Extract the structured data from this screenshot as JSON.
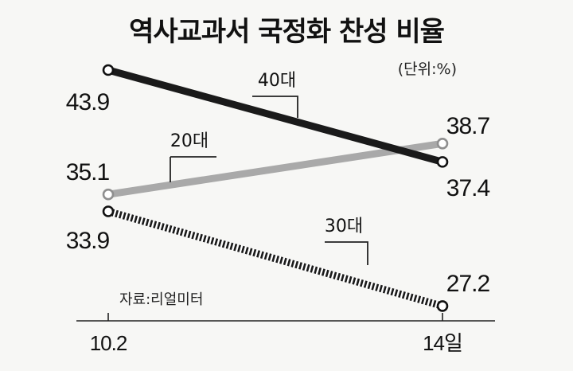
{
  "chart_data": {
    "type": "line",
    "title": "역사교과서 국정화 찬성 비율",
    "unit_label": "(단위:%)",
    "source": "자료:리얼미터",
    "categories": [
      "10.2",
      "14일"
    ],
    "series": [
      {
        "name": "40대",
        "values": [
          43.9,
          37.4
        ],
        "value_labels": [
          "43.9",
          "37.4"
        ],
        "color": "#1a1a1a",
        "style": "solid"
      },
      {
        "name": "20대",
        "values": [
          35.1,
          38.7
        ],
        "value_labels": [
          "35.1",
          "38.7"
        ],
        "color": "#a9a9a9",
        "style": "solid"
      },
      {
        "name": "30대",
        "values": [
          33.9,
          27.2
        ],
        "value_labels": [
          "33.9",
          "27.2"
        ],
        "color": "#1a1a1a",
        "style": "hatched"
      }
    ],
    "grid": false,
    "legend": "inline-labels"
  }
}
